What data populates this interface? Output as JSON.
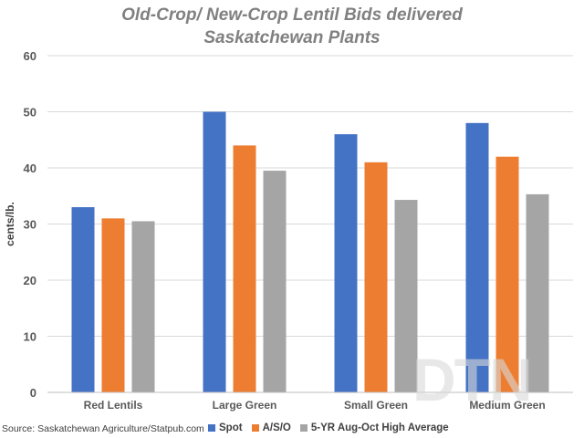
{
  "chart_data": {
    "type": "bar",
    "title_lines": [
      "Old-Crop/ New-Crop Lentil Bids delivered",
      "Saskatchewan Plants"
    ],
    "ylabel": "cents/lb.",
    "xlabel": "",
    "ylim": [
      0,
      60
    ],
    "yticks": [
      0,
      10,
      20,
      30,
      40,
      50,
      60
    ],
    "grid": true,
    "legend_position": "bottom",
    "categories": [
      "Red Lentils",
      "Large Green",
      "Small Green",
      "Medium Green"
    ],
    "series": [
      {
        "name": "Spot",
        "color": "#4472c4",
        "values": [
          33,
          50,
          46,
          48
        ]
      },
      {
        "name": "A/S/O",
        "color": "#ed7d31",
        "values": [
          31,
          44,
          41,
          42
        ]
      },
      {
        "name": "5-YR Aug-Oct High Average",
        "color": "#a5a5a5",
        "values": [
          30.5,
          39.5,
          34.3,
          35.3
        ]
      }
    ]
  },
  "footer": {
    "source": "Source: Saskatchewan Agriculture/Statpub.com"
  },
  "watermark": "DTN"
}
